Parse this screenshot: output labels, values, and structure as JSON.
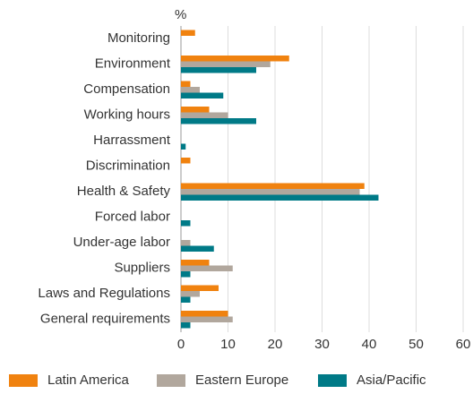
{
  "chart_data": {
    "type": "hbar",
    "axis_label": "%",
    "categories": [
      "Monitoring",
      "Environment",
      "Compensation",
      "Working hours",
      "Harrassment",
      "Discrimination",
      "Health & Safety",
      "Forced labor",
      "Under-age labor",
      "Suppliers",
      "Laws and Regulations",
      "General requirements"
    ],
    "series": [
      {
        "name": "Latin America",
        "color": "#f0820f",
        "values": [
          3,
          23,
          2,
          6,
          0,
          2,
          39,
          0,
          0,
          6,
          8,
          10
        ]
      },
      {
        "name": "Eastern Europe",
        "color": "#b1a79d",
        "values": [
          0,
          19,
          4,
          10,
          0,
          0,
          38,
          0,
          2,
          11,
          4,
          11
        ]
      },
      {
        "name": "Asia/Pacific",
        "color": "#007a87",
        "values": [
          0,
          16,
          9,
          16,
          1,
          0,
          42,
          2,
          7,
          2,
          2,
          2
        ]
      }
    ],
    "xlim": [
      0,
      60
    ],
    "xticks": [
      0,
      10,
      20,
      30,
      40,
      50,
      60
    ],
    "grid": true,
    "legend": "bottom"
  }
}
